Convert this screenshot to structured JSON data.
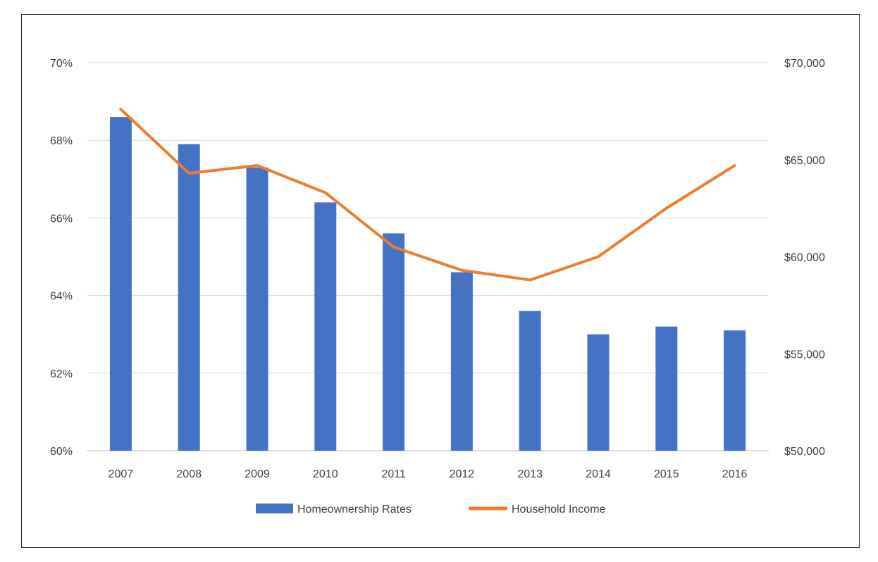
{
  "chart_data": {
    "type": "bar",
    "title": "",
    "xlabel": "",
    "ylabel": "",
    "y2label": "",
    "categories": [
      "2007",
      "2008",
      "2009",
      "2010",
      "2011",
      "2012",
      "2013",
      "2014",
      "2015",
      "2016"
    ],
    "series": [
      {
        "name": "Homeownership Rates",
        "type": "bar",
        "axis": "left",
        "color": "#4472C4",
        "values": [
          68.6,
          67.9,
          67.3,
          66.4,
          65.6,
          64.6,
          63.6,
          63.0,
          63.2,
          63.1
        ]
      },
      {
        "name": "Household Income",
        "type": "line",
        "axis": "right",
        "color": "#ED7D31",
        "values": [
          67600,
          64300,
          64700,
          63300,
          60500,
          59300,
          58800,
          60000,
          62500,
          64700
        ]
      }
    ],
    "ylim": [
      60,
      70
    ],
    "y2lim": [
      50000,
      70000
    ],
    "yticks": [
      "70%",
      "68%",
      "66%",
      "64%",
      "62%",
      "60%"
    ],
    "y2ticks": [
      "$70,000",
      "$65,000",
      "$60,000",
      "$55,000",
      "$50,000"
    ],
    "grid": true,
    "legend": "bottom"
  }
}
